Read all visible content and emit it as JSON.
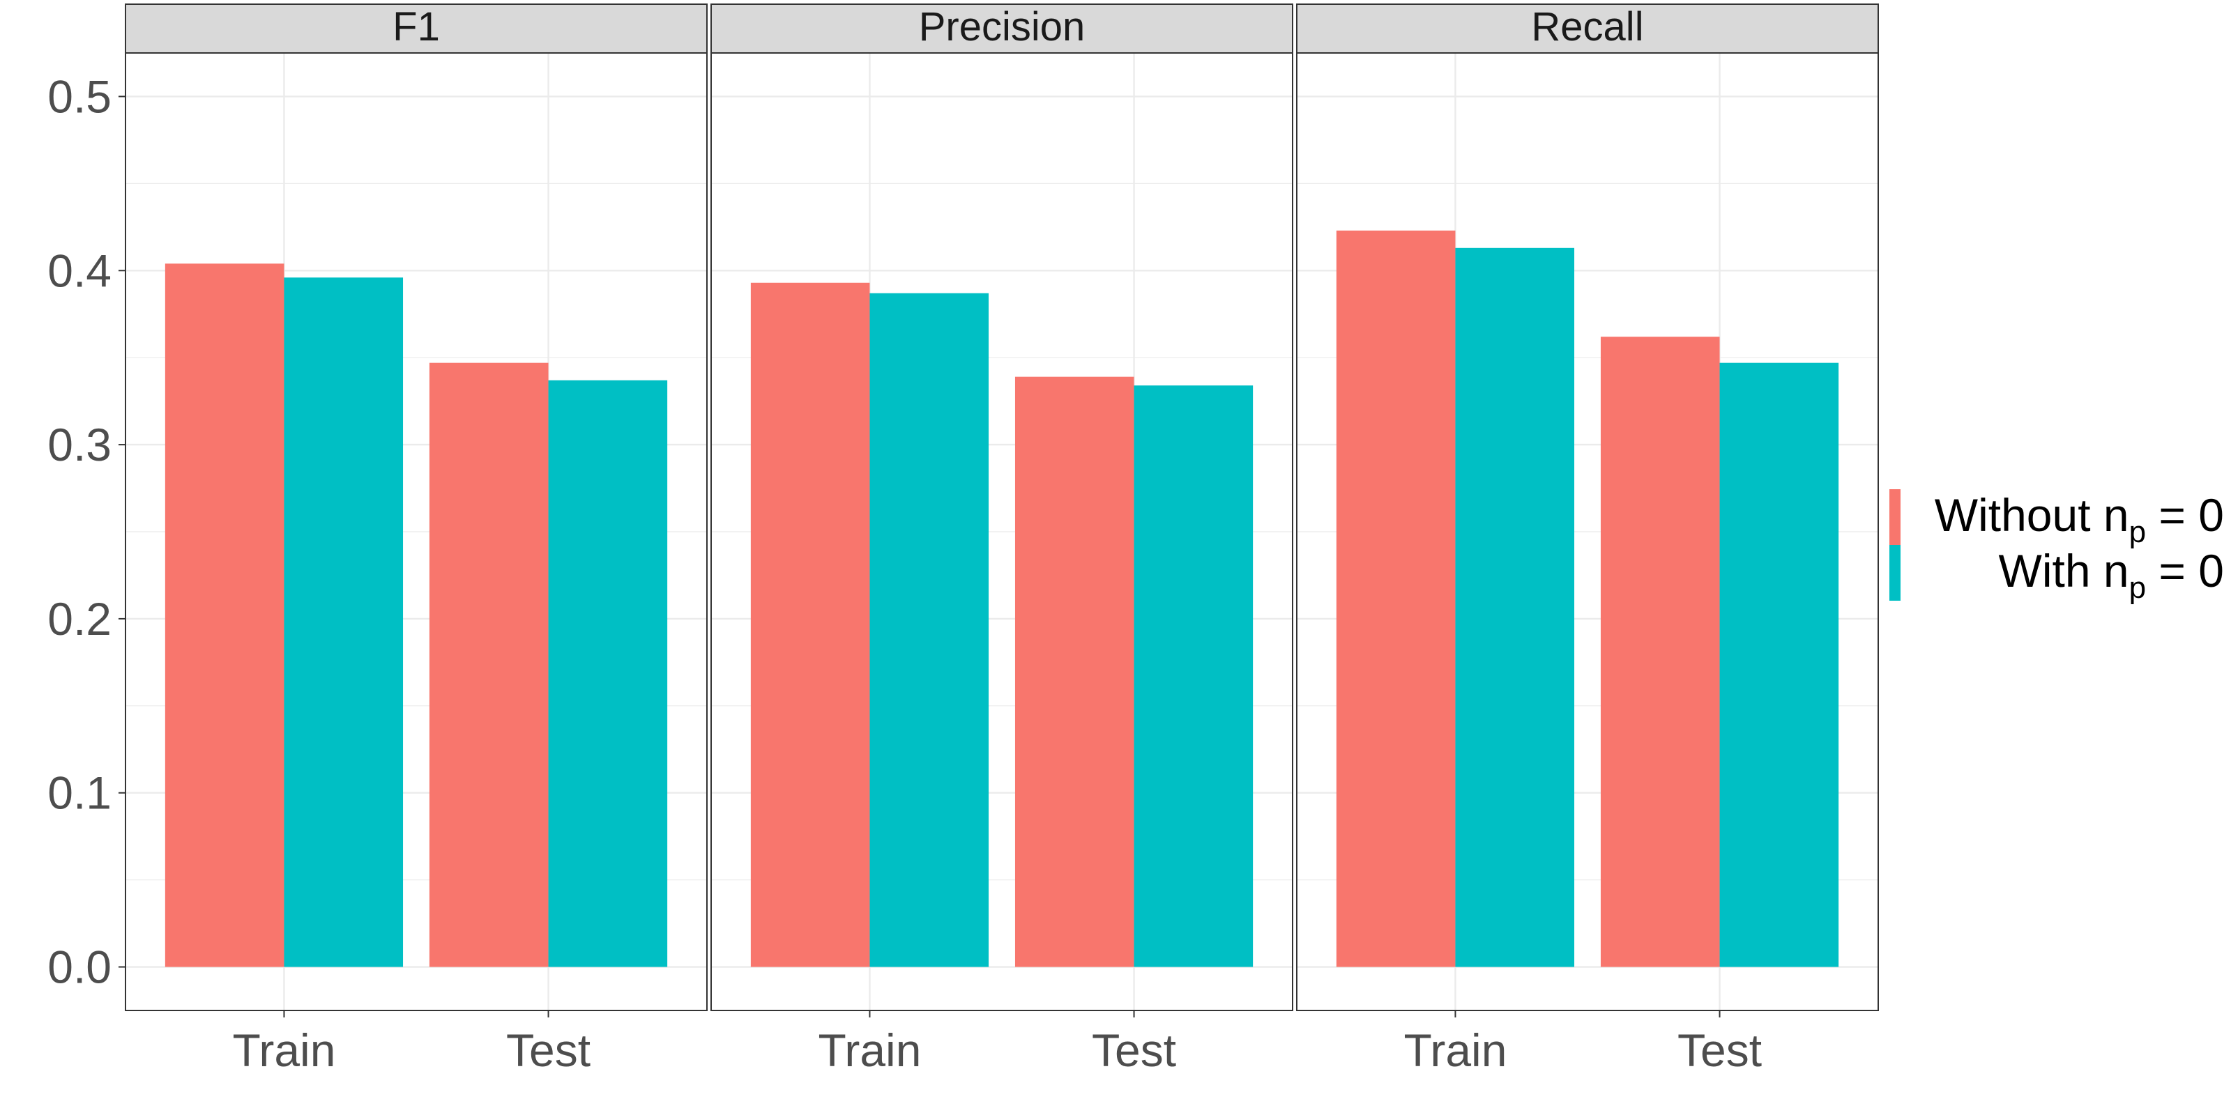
{
  "chart_data": {
    "type": "bar",
    "categories": [
      "Train",
      "Test"
    ],
    "ylim": [
      -0.025,
      0.525
    ],
    "yticks": [
      0.0,
      0.1,
      0.2,
      0.3,
      0.4,
      0.5
    ],
    "ytick_labels": [
      "0.0",
      "0.1",
      "0.2",
      "0.3",
      "0.4",
      "0.5"
    ],
    "grid": true,
    "legend_placement": "right",
    "panels": [
      {
        "title": "F1",
        "series": [
          {
            "values": [
              0.404,
              0.347
            ]
          },
          {
            "values": [
              0.396,
              0.337
            ]
          }
        ]
      },
      {
        "title": "Precision",
        "series": [
          {
            "values": [
              0.393,
              0.339
            ]
          },
          {
            "values": [
              0.387,
              0.334
            ]
          }
        ]
      },
      {
        "title": "Recall",
        "series": [
          {
            "values": [
              0.423,
              0.362
            ]
          },
          {
            "values": [
              0.413,
              0.347
            ]
          }
        ]
      }
    ],
    "legend": [
      {
        "label": "Without",
        "subscript_expr": {
          "base": "n",
          "sub": "p",
          "rest": " = 0"
        },
        "color": "#F8766D"
      },
      {
        "label": "With",
        "subscript_expr": {
          "base": "n",
          "sub": "p",
          "rest": " = 0"
        },
        "color": "#00BFC4"
      }
    ]
  },
  "colors": {
    "series": [
      "#F8766D",
      "#00BFC4"
    ],
    "strip_fill": "#D9D9D9",
    "panel_border": "#333333",
    "grid": "#EBEBEB",
    "text": "#4D4D4D",
    "strip_text": "#1A1A1A",
    "legend_text": "#000000"
  }
}
